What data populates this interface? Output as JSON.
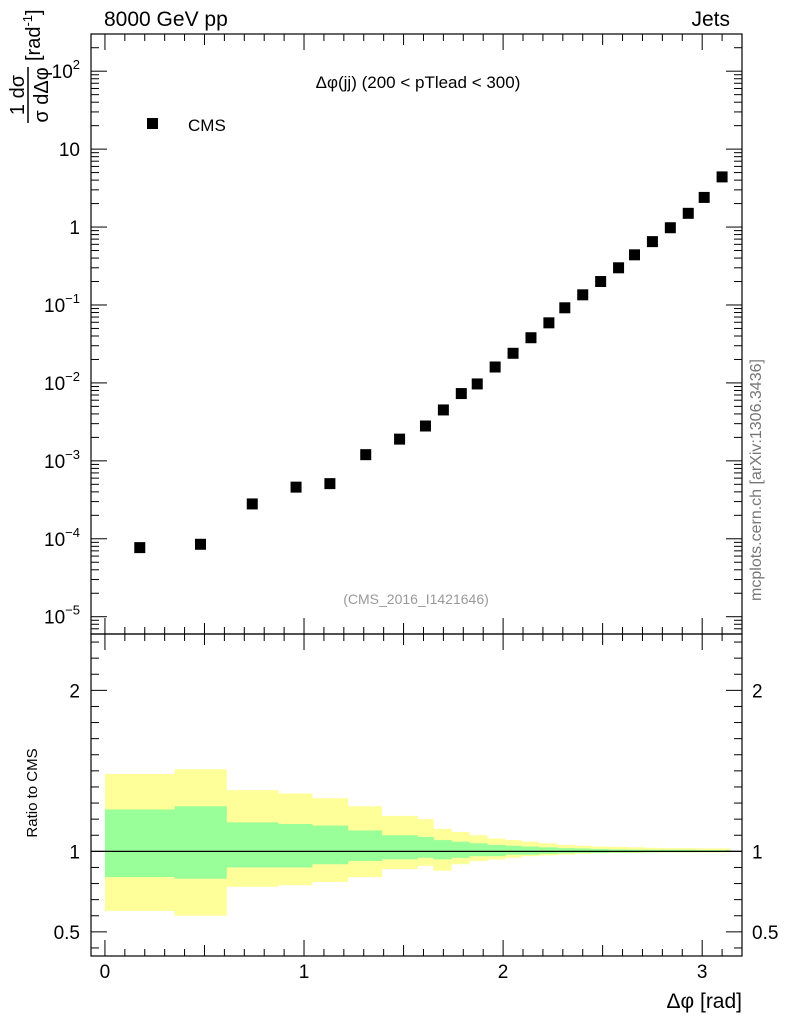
{
  "header": {
    "energy_label": "8000 GeV pp",
    "category_label": "Jets",
    "side_credit": "mcplots.cern.ch [arXiv:1306.3436]"
  },
  "chart_data": [
    {
      "type": "scatter",
      "name": "distribution",
      "title": "Δφ(jj) (200 < pTlead <  300)",
      "ylabel_num": "1 dσ",
      "ylabel_den": "σ dΔφ",
      "ylabel_unit": "[rad",
      "ylabel_unit_exp": "-1",
      "ylabel_unit_close": "]",
      "yscale": "log",
      "ylim": [
        6e-06,
        300
      ],
      "xlim": [
        -0.07,
        3.2
      ],
      "legend": [
        {
          "label": "CMS",
          "marker": "square",
          "color": "#000000"
        }
      ],
      "legend_position": "top-left",
      "watermark": "(CMS_2016_I1421646)",
      "y_tick_labels": [
        {
          "base": "10",
          "exp": "2",
          "value": 100
        },
        {
          "base": "10",
          "exp": "",
          "value": 10
        },
        {
          "base": "1",
          "exp": "",
          "value": 1
        },
        {
          "base": "10",
          "exp": "−1",
          "value": 0.1
        },
        {
          "base": "10",
          "exp": "−2",
          "value": 0.01
        },
        {
          "base": "10",
          "exp": "−3",
          "value": 0.001
        },
        {
          "base": "10",
          "exp": "−4",
          "value": 0.0001
        },
        {
          "base": "10",
          "exp": "−5",
          "value": 1e-05
        }
      ],
      "series": [
        {
          "name": "CMS",
          "x": [
            0.175,
            0.48,
            0.74,
            0.96,
            1.13,
            1.31,
            1.48,
            1.61,
            1.7,
            1.79,
            1.87,
            1.96,
            2.05,
            2.14,
            2.23,
            2.31,
            2.4,
            2.49,
            2.58,
            2.66,
            2.75,
            2.84,
            2.93,
            3.01,
            3.1
          ],
          "y": [
            7.7e-05,
            8.5e-05,
            0.00028,
            0.00046,
            0.00051,
            0.0012,
            0.0019,
            0.0028,
            0.0045,
            0.0073,
            0.0097,
            0.016,
            0.024,
            0.038,
            0.059,
            0.092,
            0.135,
            0.2,
            0.3,
            0.44,
            0.65,
            0.98,
            1.5,
            2.4,
            4.4
          ]
        }
      ]
    },
    {
      "type": "area",
      "name": "ratio",
      "ylabel": "Ratio to CMS",
      "xlabel": "Δφ [rad]",
      "ylim": [
        0.35,
        2.35
      ],
      "xlim": [
        -0.07,
        3.2
      ],
      "y_tick_labels": [
        "0.5",
        "1",
        "2"
      ],
      "y_tick_values": [
        0.5,
        1,
        2
      ],
      "x_tick_labels": [
        "0",
        "1",
        "2",
        "3"
      ],
      "x_tick_values": [
        0,
        1,
        2,
        3
      ],
      "reference_line": 1,
      "bands": {
        "x_edges": [
          0.0,
          0.35,
          0.61,
          0.87,
          1.04,
          1.22,
          1.39,
          1.57,
          1.65,
          1.74,
          1.83,
          1.92,
          2.01,
          2.09,
          2.18,
          2.27,
          2.36,
          2.44,
          2.53,
          2.62,
          2.71,
          2.79,
          2.88,
          2.97,
          3.05,
          3.14
        ],
        "yellow_upper": [
          1.48,
          1.51,
          1.38,
          1.36,
          1.33,
          1.28,
          1.22,
          1.2,
          1.14,
          1.12,
          1.1,
          1.08,
          1.07,
          1.06,
          1.05,
          1.04,
          1.035,
          1.03,
          1.028,
          1.025,
          1.022,
          1.02,
          1.02,
          1.018,
          1.018
        ],
        "yellow_lower": [
          0.63,
          0.6,
          0.78,
          0.79,
          0.81,
          0.84,
          0.89,
          0.91,
          0.88,
          0.92,
          0.94,
          0.95,
          0.96,
          0.97,
          0.975,
          0.98,
          0.985,
          0.988,
          0.99,
          0.99,
          0.992,
          0.993,
          0.993,
          0.994,
          0.994
        ],
        "green_upper": [
          1.26,
          1.28,
          1.18,
          1.17,
          1.16,
          1.13,
          1.1,
          1.09,
          1.07,
          1.06,
          1.05,
          1.04,
          1.035,
          1.03,
          1.025,
          1.02,
          1.018,
          1.015,
          1.012,
          1.01,
          1.01,
          1.01,
          1.01,
          1.008,
          1.008
        ],
        "green_lower": [
          0.84,
          0.83,
          0.9,
          0.9,
          0.92,
          0.94,
          0.95,
          0.96,
          0.95,
          0.96,
          0.97,
          0.97,
          0.98,
          0.98,
          0.985,
          0.988,
          0.99,
          0.99,
          0.992,
          0.993,
          0.994,
          0.995,
          0.995,
          0.996,
          0.996
        ]
      },
      "colors": {
        "outer_band": "#ffff99",
        "inner_band": "#99ff99",
        "reference": "#000000"
      }
    }
  ]
}
